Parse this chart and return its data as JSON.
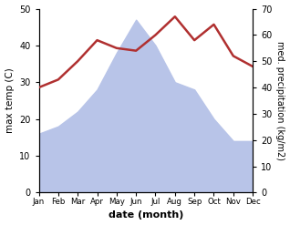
{
  "months": [
    "Jan",
    "Feb",
    "Mar",
    "Apr",
    "May",
    "Jun",
    "Jul",
    "Aug",
    "Sep",
    "Oct",
    "Nov",
    "Dec"
  ],
  "month_x": [
    1,
    2,
    3,
    4,
    5,
    6,
    7,
    8,
    9,
    10,
    11,
    12
  ],
  "temperature": [
    16,
    18,
    22,
    28,
    38,
    47,
    40,
    30,
    28,
    20,
    14,
    14
  ],
  "precipitation": [
    40,
    43,
    50,
    58,
    55,
    54,
    60,
    67,
    58,
    64,
    52,
    48
  ],
  "temp_fill_color": "#b8c4e8",
  "precip_color": "#b03030",
  "ylim_left": [
    0,
    50
  ],
  "ylim_right": [
    0,
    70
  ],
  "yticks_left": [
    0,
    10,
    20,
    30,
    40,
    50
  ],
  "yticks_right": [
    0,
    10,
    20,
    30,
    40,
    50,
    60,
    70
  ],
  "xlabel": "date (month)",
  "ylabel_left": "max temp (C)",
  "ylabel_right": "med. precipitation (kg/m2)"
}
